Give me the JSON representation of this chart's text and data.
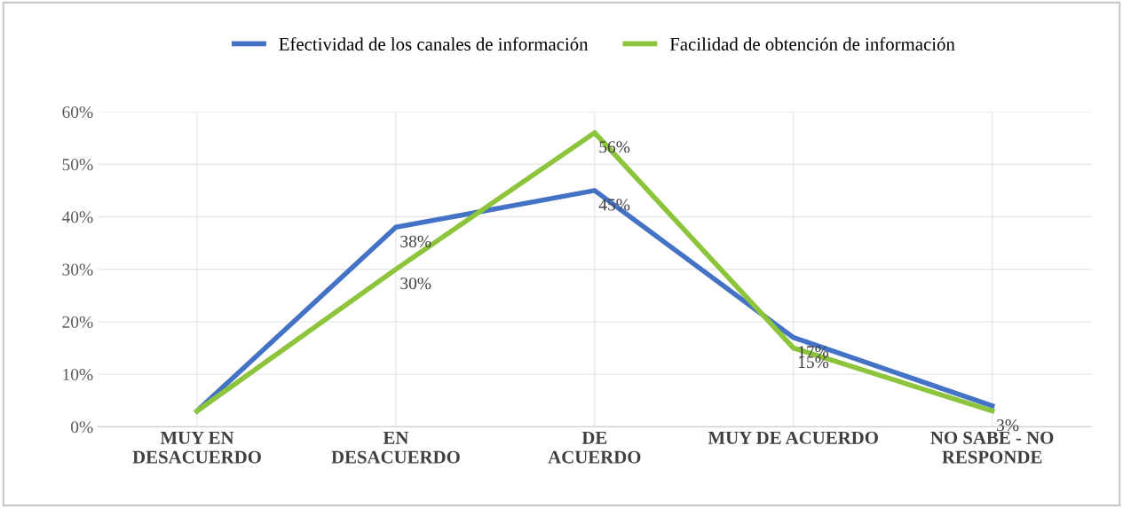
{
  "chart_data": {
    "type": "line",
    "categories": [
      "MUY EN\nDESACUERDO",
      "EN\nDESACUERDO",
      "DE\nACUERDO",
      "MUY DE ACUERDO",
      "NO SABE - NO\nRESPONDE"
    ],
    "series": [
      {
        "name": "Efectividad de los canales de información",
        "color": "#4472c4",
        "values": [
          3,
          38,
          45,
          17,
          4
        ],
        "value_labels": [
          null,
          "38%",
          "45%",
          "17%",
          null
        ]
      },
      {
        "name": "Facilidad de obtención de información",
        "color": "#8cc43c",
        "values": [
          3,
          30,
          56,
          15,
          3
        ],
        "value_labels": [
          null,
          "30%",
          "56%",
          "15%",
          "3%"
        ]
      }
    ],
    "ylim": [
      0,
      60
    ],
    "yticks": [
      {
        "value": 0,
        "label": "0%"
      },
      {
        "value": 10,
        "label": "10%"
      },
      {
        "value": 20,
        "label": "20%"
      },
      {
        "value": 30,
        "label": "30%"
      },
      {
        "value": 40,
        "label": "40%"
      },
      {
        "value": 50,
        "label": "50%"
      },
      {
        "value": 60,
        "label": "60%"
      }
    ],
    "grid": true,
    "legend": "top",
    "marker": "none",
    "line_style": "solid"
  }
}
